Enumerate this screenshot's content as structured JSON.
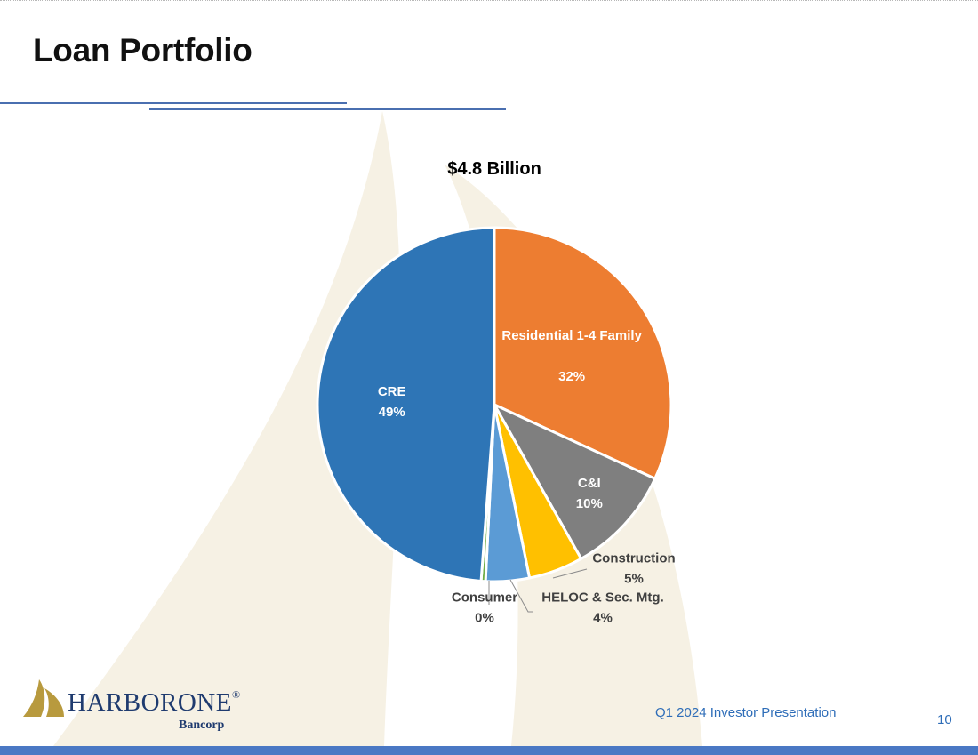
{
  "slide": {
    "title": "Loan Portfolio",
    "footer": "Q1 2024 Investor Presentation",
    "page_number": "10"
  },
  "logo": {
    "name": "HARBORONE",
    "registered": "®",
    "sub": "Bancorp"
  },
  "colors": {
    "accent_blue": "#4a78c4",
    "title_rule": "#4a6fb0",
    "footer_text": "#2e6db8",
    "background_shape": "#f6f1e4",
    "logo_gold": "#b89a3e",
    "logo_navy": "#1f3b6f"
  },
  "chart_data": {
    "type": "pie",
    "title": "$4.8 Billion",
    "slices": [
      {
        "label": "Residential 1-4 Family",
        "value": 32,
        "display": "32%",
        "color": "#ed7d31",
        "label_inside": true
      },
      {
        "label": "C&I",
        "value": 10,
        "display": "10%",
        "color": "#7f7f7f",
        "label_inside": true
      },
      {
        "label": "Construction",
        "value": 5,
        "display": "5%",
        "color": "#ffc000",
        "label_inside": false
      },
      {
        "label": "HELOC & Sec. Mtg.",
        "value": 4,
        "display": "4%",
        "color": "#5b9bd5",
        "label_inside": false
      },
      {
        "label": "Consumer",
        "value": 0.4,
        "display": "0%",
        "color": "#70ad47",
        "label_inside": false
      },
      {
        "label": "CRE",
        "value": 49,
        "display": "49%",
        "color": "#2e75b6",
        "label_inside": true
      }
    ],
    "start_angle": "12 o'clock",
    "direction": "clockwise",
    "legend": "none"
  }
}
